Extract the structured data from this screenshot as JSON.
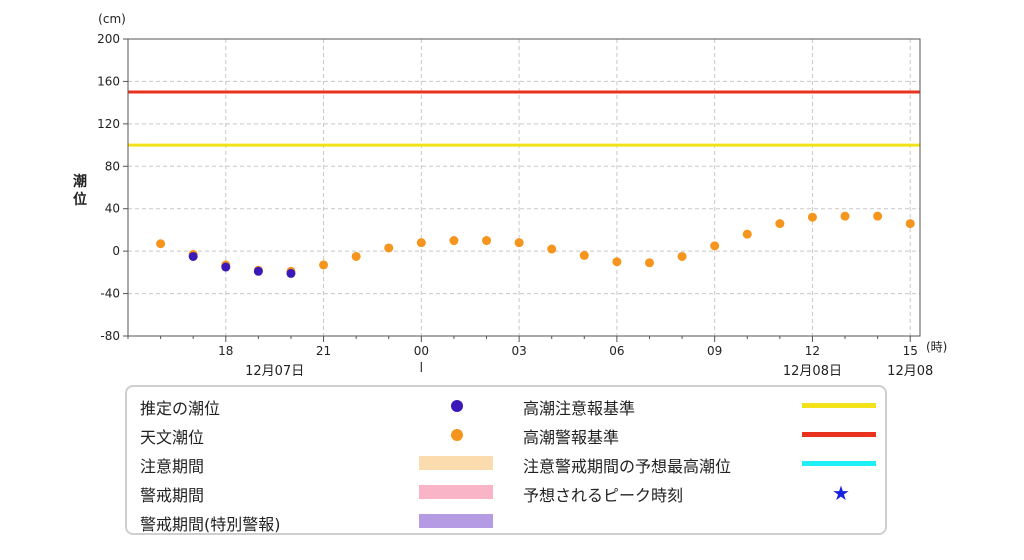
{
  "chart_data": {
    "type": "scatter",
    "yunit": "(cm)",
    "xunit": "(時)",
    "ylabel": "潮位",
    "ylim": [
      -80,
      200
    ],
    "yticks": [
      "200",
      "160",
      "120",
      "80",
      "40",
      "0",
      "-40",
      "-80"
    ],
    "ytick_values": [
      200,
      160,
      120,
      80,
      40,
      0,
      -40,
      -80
    ],
    "x_hours_range": [
      15,
      39.3
    ],
    "xticks": [
      {
        "hour": 18,
        "label": "18"
      },
      {
        "hour": 21,
        "label": "21"
      },
      {
        "hour": 24,
        "label": "00"
      },
      {
        "hour": 27,
        "label": "03"
      },
      {
        "hour": 30,
        "label": "06"
      },
      {
        "hour": 33,
        "label": "09"
      },
      {
        "hour": 36,
        "label": "12"
      },
      {
        "hour": 39,
        "label": "15"
      }
    ],
    "date_labels": [
      {
        "hour": 19.5,
        "label": "12月07日"
      },
      {
        "hour": 36,
        "label": "12月08日"
      },
      {
        "hour": 39,
        "label": "12月08"
      }
    ],
    "grid": true,
    "thresholds": [
      {
        "name": "高潮注意報基準",
        "value": 100,
        "color": "#f2e21a"
      },
      {
        "name": "高潮警報基準",
        "value": 150,
        "color": "#e8321e"
      }
    ],
    "series": [
      {
        "name": "天文潮位",
        "color": "#f5951e",
        "points": [
          {
            "x": "12/07 16:00",
            "y": 7
          },
          {
            "x": "12/07 17:00",
            "y": -3
          },
          {
            "x": "12/07 18:00",
            "y": -13
          },
          {
            "x": "12/07 19:00",
            "y": -18
          },
          {
            "x": "12/07 20:00",
            "y": -19
          },
          {
            "x": "12/07 21:00",
            "y": -13
          },
          {
            "x": "12/07 22:00",
            "y": -5
          },
          {
            "x": "12/07 23:00",
            "y": 3
          },
          {
            "x": "12/08 00:00",
            "y": 8
          },
          {
            "x": "12/08 01:00",
            "y": 10
          },
          {
            "x": "12/08 02:00",
            "y": 10
          },
          {
            "x": "12/08 03:00",
            "y": 8
          },
          {
            "x": "12/08 04:00",
            "y": 2
          },
          {
            "x": "12/08 05:00",
            "y": -4
          },
          {
            "x": "12/08 06:00",
            "y": -10
          },
          {
            "x": "12/08 07:00",
            "y": -11
          },
          {
            "x": "12/08 08:00",
            "y": -5
          },
          {
            "x": "12/08 09:00",
            "y": 5
          },
          {
            "x": "12/08 10:00",
            "y": 16
          },
          {
            "x": "12/08 11:00",
            "y": 26
          },
          {
            "x": "12/08 12:00",
            "y": 32
          },
          {
            "x": "12/08 13:00",
            "y": 33
          },
          {
            "x": "12/08 14:00",
            "y": 33
          },
          {
            "x": "12/08 15:00",
            "y": 26
          }
        ]
      },
      {
        "name": "推定の潮位",
        "color": "#3a19b8",
        "points": [
          {
            "x": "12/07 17:00",
            "y": -5
          },
          {
            "x": "12/07 18:00",
            "y": -15
          },
          {
            "x": "12/07 19:00",
            "y": -19
          },
          {
            "x": "12/07 20:00",
            "y": -21
          }
        ]
      }
    ]
  },
  "legend": {
    "left": [
      {
        "label": "推定の潮位",
        "kind": "dot",
        "color": "#3a19b8"
      },
      {
        "label": "天文潮位",
        "kind": "dot",
        "color": "#f5951e"
      },
      {
        "label": "注意期間",
        "kind": "swatch",
        "color": "#fbdcae"
      },
      {
        "label": "警戒期間",
        "kind": "swatch",
        "color": "#f9b4c8"
      },
      {
        "label": "警戒期間(特別警報)",
        "kind": "swatch",
        "color": "#b59ae4"
      }
    ],
    "right": [
      {
        "label": "高潮注意報基準",
        "kind": "line",
        "color": "#f2e21a"
      },
      {
        "label": "高潮警報基準",
        "kind": "line",
        "color": "#e8321e"
      },
      {
        "label": "注意警戒期間の予想最高潮位",
        "kind": "line",
        "color": "#1ef0f5"
      },
      {
        "label": "予想されるピーク時刻",
        "kind": "star",
        "color": "#1722e0",
        "glyph": "★"
      }
    ]
  }
}
